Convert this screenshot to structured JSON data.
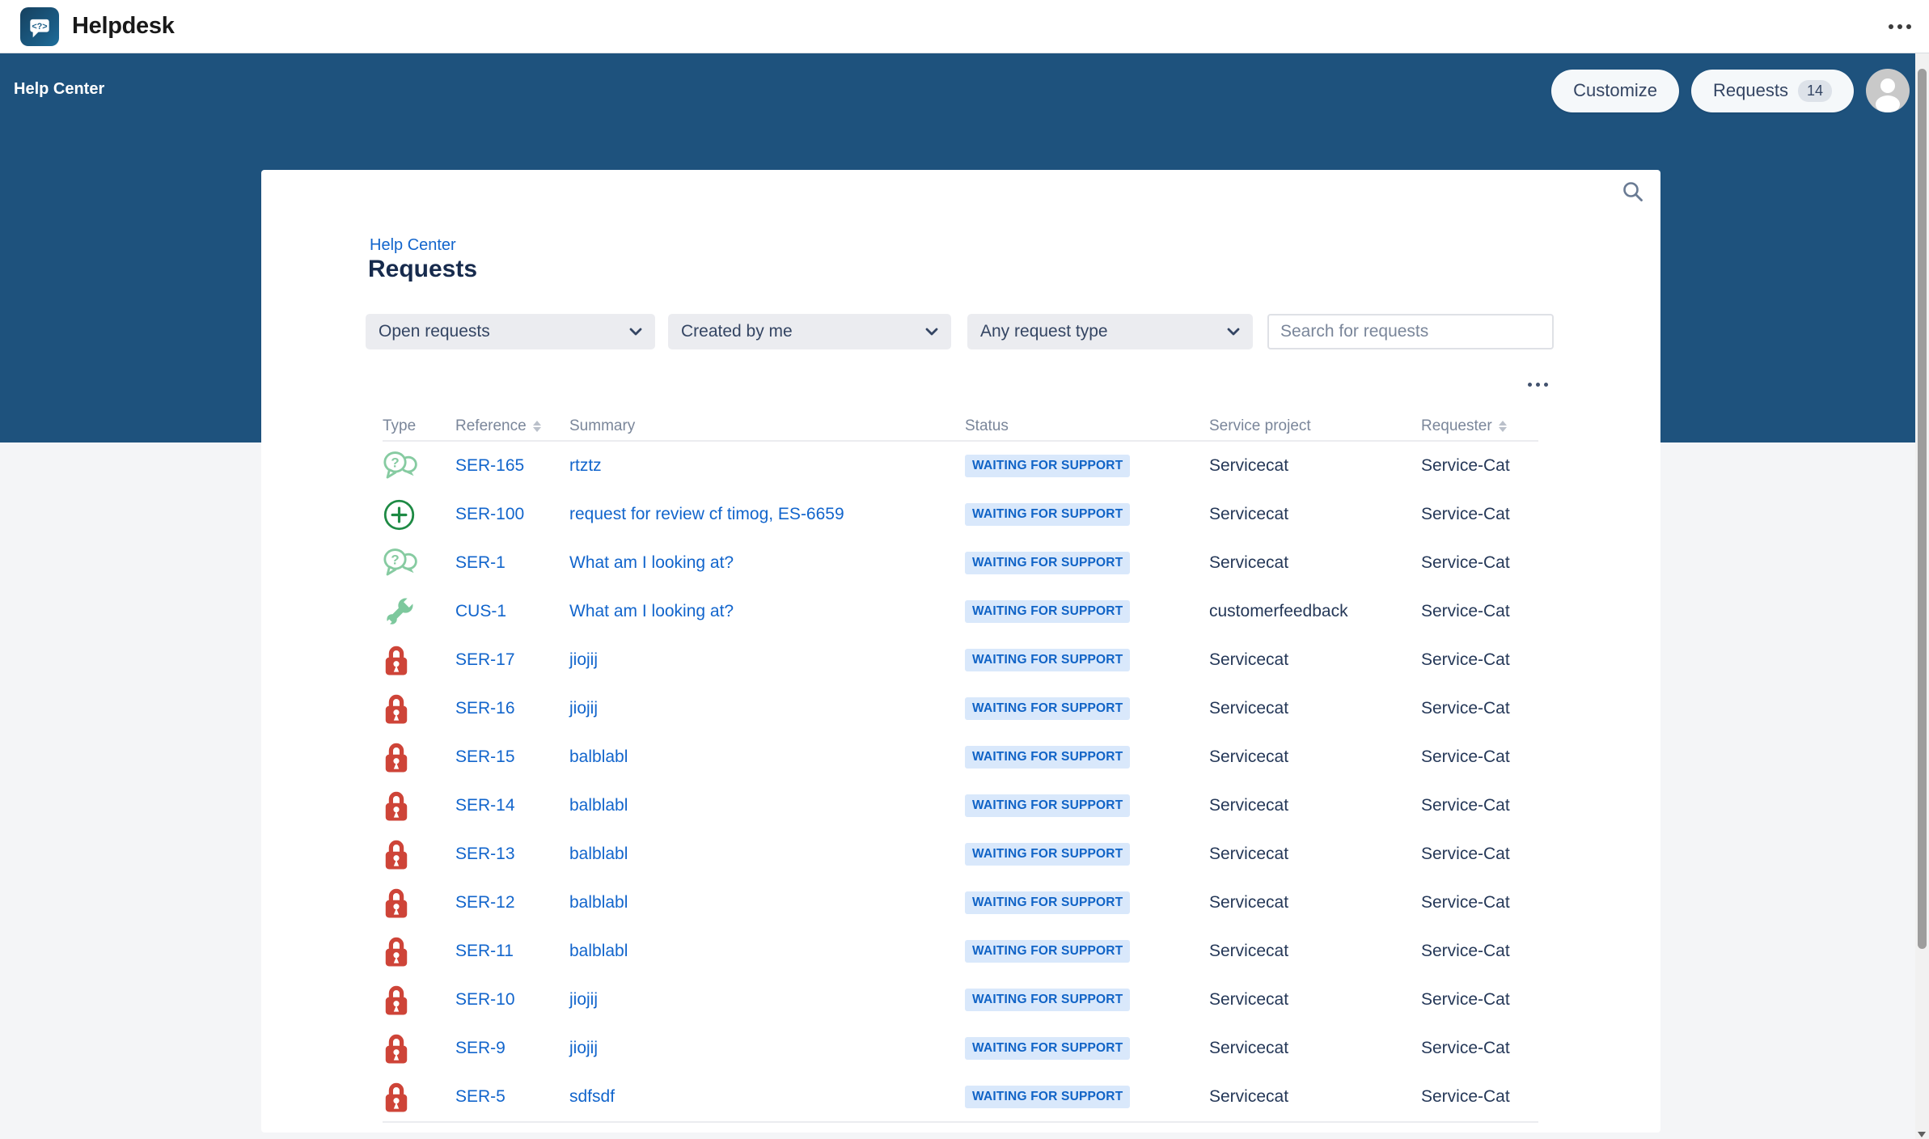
{
  "header": {
    "app_title": "Helpdesk"
  },
  "hero": {
    "label": "Help Center",
    "customize_button": "Customize",
    "requests_button": "Requests",
    "requests_count": "14"
  },
  "page": {
    "breadcrumb": "Help Center",
    "title": "Requests",
    "filters": {
      "status_filter": "Open requests",
      "owner_filter": "Created by me",
      "type_filter": "Any request type",
      "search_placeholder": "Search for requests"
    },
    "table": {
      "columns": [
        {
          "label": "Type",
          "sortable": false
        },
        {
          "label": "Reference",
          "sortable": true
        },
        {
          "label": "Summary",
          "sortable": false
        },
        {
          "label": "Status",
          "sortable": false
        },
        {
          "label": "Service project",
          "sortable": false
        },
        {
          "label": "Requester",
          "sortable": true
        }
      ],
      "rows": [
        {
          "icon": "question",
          "reference": "SER-165",
          "summary": "rtztz",
          "status": "WAITING FOR SUPPORT",
          "service_project": "Servicecat",
          "requester": "Service-Cat"
        },
        {
          "icon": "create",
          "reference": "SER-100",
          "summary": "request for review cf timog, ES-6659",
          "status": "WAITING FOR SUPPORT",
          "service_project": "Servicecat",
          "requester": "Service-Cat"
        },
        {
          "icon": "question",
          "reference": "SER-1",
          "summary": "What am I looking at?",
          "status": "WAITING FOR SUPPORT",
          "service_project": "Servicecat",
          "requester": "Service-Cat"
        },
        {
          "icon": "wrench",
          "reference": "CUS-1",
          "summary": "What am I looking at?",
          "status": "WAITING FOR SUPPORT",
          "service_project": "customerfeedback",
          "requester": "Service-Cat"
        },
        {
          "icon": "lock",
          "reference": "SER-17",
          "summary": "jiojij",
          "status": "WAITING FOR SUPPORT",
          "service_project": "Servicecat",
          "requester": "Service-Cat"
        },
        {
          "icon": "lock",
          "reference": "SER-16",
          "summary": "jiojij",
          "status": "WAITING FOR SUPPORT",
          "service_project": "Servicecat",
          "requester": "Service-Cat"
        },
        {
          "icon": "lock",
          "reference": "SER-15",
          "summary": "balblabl",
          "status": "WAITING FOR SUPPORT",
          "service_project": "Servicecat",
          "requester": "Service-Cat"
        },
        {
          "icon": "lock",
          "reference": "SER-14",
          "summary": "balblabl",
          "status": "WAITING FOR SUPPORT",
          "service_project": "Servicecat",
          "requester": "Service-Cat"
        },
        {
          "icon": "lock",
          "reference": "SER-13",
          "summary": "balblabl",
          "status": "WAITING FOR SUPPORT",
          "service_project": "Servicecat",
          "requester": "Service-Cat"
        },
        {
          "icon": "lock",
          "reference": "SER-12",
          "summary": "balblabl",
          "status": "WAITING FOR SUPPORT",
          "service_project": "Servicecat",
          "requester": "Service-Cat"
        },
        {
          "icon": "lock",
          "reference": "SER-11",
          "summary": "balblabl",
          "status": "WAITING FOR SUPPORT",
          "service_project": "Servicecat",
          "requester": "Service-Cat"
        },
        {
          "icon": "lock",
          "reference": "SER-10",
          "summary": "jiojij",
          "status": "WAITING FOR SUPPORT",
          "service_project": "Servicecat",
          "requester": "Service-Cat"
        },
        {
          "icon": "lock",
          "reference": "SER-9",
          "summary": "jiojij",
          "status": "WAITING FOR SUPPORT",
          "service_project": "Servicecat",
          "requester": "Service-Cat"
        },
        {
          "icon": "lock",
          "reference": "SER-5",
          "summary": "sdfsdf",
          "status": "WAITING FOR SUPPORT",
          "service_project": "Servicecat",
          "requester": "Service-Cat"
        }
      ]
    }
  },
  "colors": {
    "hero_background": "#1e527d",
    "link_blue": "#1265cc",
    "status_badge_bg": "#d9e8fb",
    "status_badge_text": "#1063c6",
    "lock_red": "#ce4438",
    "green_dark": "#1e8a44",
    "green_light": "#86cba1",
    "page_background": "#f4f5f7"
  }
}
